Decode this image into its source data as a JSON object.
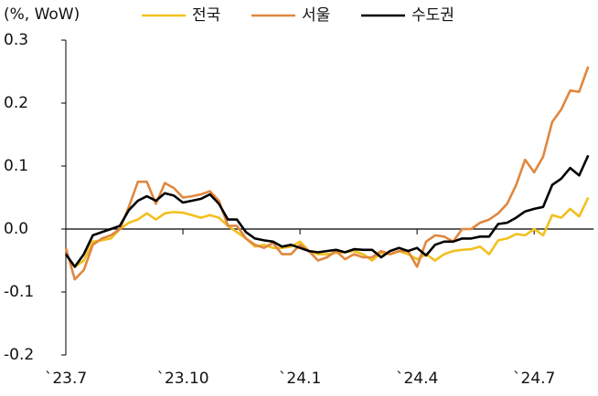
{
  "chart_data": {
    "type": "line",
    "y_label": "(%, WoW)",
    "categories": [
      "`23.7",
      null,
      null,
      null,
      null,
      null,
      null,
      null,
      null,
      null,
      null,
      null,
      null,
      "`23.10",
      null,
      null,
      null,
      null,
      null,
      null,
      null,
      null,
      null,
      null,
      null,
      null,
      "`24.1",
      null,
      null,
      null,
      null,
      null,
      null,
      null,
      null,
      null,
      null,
      null,
      null,
      "`24.4",
      null,
      null,
      null,
      null,
      null,
      null,
      null,
      null,
      null,
      null,
      null,
      null,
      "`24.7",
      null,
      null,
      null,
      null,
      null,
      null
    ],
    "series": [
      {
        "name": "전국",
        "color": "#f2c01e",
        "values": [
          -0.04,
          -0.06,
          -0.05,
          -0.02,
          -0.018,
          -0.015,
          0.0,
          0.01,
          0.015,
          0.025,
          0.015,
          0.025,
          0.027,
          0.026,
          0.022,
          0.018,
          0.022,
          0.018,
          0.005,
          -0.005,
          -0.015,
          -0.028,
          -0.025,
          -0.03,
          -0.03,
          -0.028,
          -0.02,
          -0.035,
          -0.04,
          -0.04,
          -0.038,
          -0.037,
          -0.035,
          -0.04,
          -0.05,
          -0.038,
          -0.04,
          -0.035,
          -0.04,
          -0.048,
          -0.04,
          -0.05,
          -0.04,
          -0.035,
          -0.033,
          -0.032,
          -0.028,
          -0.04,
          -0.018,
          -0.015,
          -0.008,
          -0.01,
          0.0,
          -0.01,
          0.022,
          0.018,
          0.032,
          0.02,
          0.05
        ]
      },
      {
        "name": "서울",
        "color": "#e0873f",
        "values": [
          -0.03,
          -0.08,
          -0.065,
          -0.025,
          -0.015,
          -0.01,
          0.0,
          0.035,
          0.075,
          0.075,
          0.04,
          0.073,
          0.065,
          0.05,
          0.052,
          0.055,
          0.06,
          0.045,
          0.005,
          0.005,
          -0.015,
          -0.025,
          -0.03,
          -0.022,
          -0.04,
          -0.04,
          -0.025,
          -0.035,
          -0.05,
          -0.045,
          -0.035,
          -0.048,
          -0.04,
          -0.045,
          -0.045,
          -0.035,
          -0.04,
          -0.035,
          -0.035,
          -0.06,
          -0.02,
          -0.01,
          -0.012,
          -0.02,
          0.0,
          0.0,
          0.01,
          0.015,
          0.025,
          0.04,
          0.07,
          0.11,
          0.09,
          0.115,
          0.17,
          0.19,
          0.22,
          0.218,
          0.258
        ]
      },
      {
        "name": "수도권",
        "color": "#000000",
        "values": [
          -0.04,
          -0.06,
          -0.04,
          -0.01,
          -0.005,
          0.0,
          0.005,
          0.03,
          0.045,
          0.052,
          0.045,
          0.057,
          0.053,
          0.042,
          0.045,
          0.048,
          0.055,
          0.04,
          0.015,
          0.015,
          -0.005,
          -0.015,
          -0.018,
          -0.02,
          -0.028,
          -0.025,
          -0.03,
          -0.035,
          -0.037,
          -0.035,
          -0.033,
          -0.037,
          -0.032,
          -0.033,
          -0.033,
          -0.045,
          -0.035,
          -0.03,
          -0.035,
          -0.03,
          -0.042,
          -0.025,
          -0.02,
          -0.02,
          -0.015,
          -0.015,
          -0.012,
          -0.012,
          0.008,
          0.01,
          0.018,
          0.028,
          0.032,
          0.035,
          0.07,
          0.08,
          0.097,
          0.085,
          0.117
        ]
      }
    ],
    "ylim": [
      -0.2,
      0.3
    ],
    "yticks": [
      0.3,
      0.2,
      0.1,
      {
        "value": 0,
        "label": "0.0"
      },
      -0.1,
      -0.2
    ]
  }
}
